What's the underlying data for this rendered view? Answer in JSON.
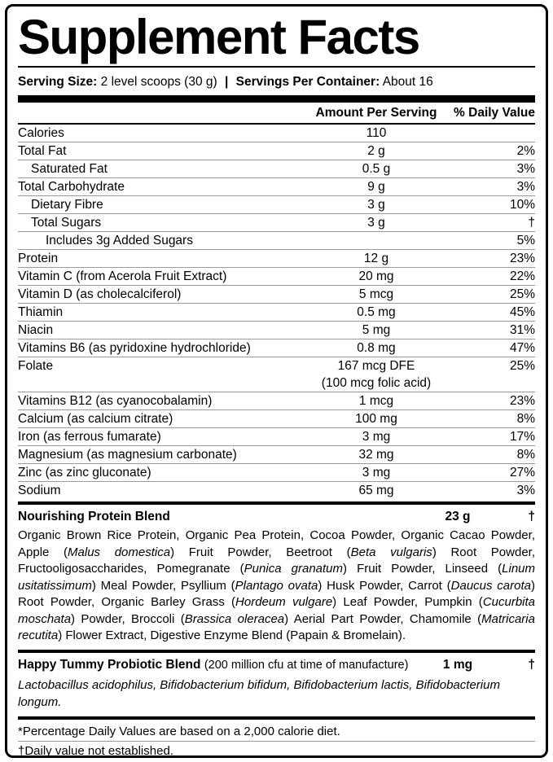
{
  "title": "Supplement Facts",
  "serving": {
    "size_label": "Serving Size:",
    "size_value": "2 level scoops (30 g)",
    "separator": "|",
    "container_label": "Servings Per Container:",
    "container_value": "About 16"
  },
  "columns": {
    "amount": "Amount Per Serving",
    "daily_value": "% Daily Value"
  },
  "nutrients": [
    {
      "name": "Calories",
      "amount": "110",
      "dv": "",
      "indent": 0
    },
    {
      "name": "Total Fat",
      "amount": "2 g",
      "dv": "2%",
      "indent": 0
    },
    {
      "name": "Saturated Fat",
      "amount": "0.5 g",
      "dv": "3%",
      "indent": 1
    },
    {
      "name": "Total Carbohydrate",
      "amount": "9 g",
      "dv": "3%",
      "indent": 0
    },
    {
      "name": "Dietary Fibre",
      "amount": "3 g",
      "dv": "10%",
      "indent": 1
    },
    {
      "name": "Total Sugars",
      "amount": "3 g",
      "dv": "†",
      "indent": 1
    },
    {
      "name": "Includes 3g Added Sugars",
      "amount": "",
      "dv": "5%",
      "indent": 2
    },
    {
      "name": "Protein",
      "amount": "12 g",
      "dv": "23%",
      "indent": 0
    },
    {
      "name": "Vitamin C (from Acerola Fruit Extract)",
      "amount": "20 mg",
      "dv": "22%",
      "indent": 0
    },
    {
      "name": "Vitamin D (as cholecalciferol)",
      "amount": "5 mcg",
      "dv": "25%",
      "indent": 0
    },
    {
      "name": "Thiamin",
      "amount": "0.5 mg",
      "dv": "45%",
      "indent": 0
    },
    {
      "name": "Niacin",
      "amount": "5 mg",
      "dv": "31%",
      "indent": 0
    },
    {
      "name": "Vitamins B6 (as pyridoxine hydrochloride)",
      "amount": "0.8 mg",
      "dv": "47%",
      "indent": 0
    },
    {
      "name": "Folate",
      "amount": "167 mcg DFE",
      "dv": "25%",
      "indent": 0
    },
    {
      "name": "",
      "amount": "(100 mcg folic acid)",
      "dv": "",
      "indent": 0,
      "sub": true
    },
    {
      "name": "Vitamins B12 (as cyanocobalamin)",
      "amount": "1 mcg",
      "dv": "23%",
      "indent": 0
    },
    {
      "name": "Calcium (as calcium citrate)",
      "amount": "100 mg",
      "dv": "8%",
      "indent": 0
    },
    {
      "name": "Iron (as ferrous fumarate)",
      "amount": "3 mg",
      "dv": "17%",
      "indent": 0
    },
    {
      "name": "Magnesium (as magnesium carbonate)",
      "amount": "32 mg",
      "dv": "8%",
      "indent": 0
    },
    {
      "name": "Zinc (as zinc gluconate)",
      "amount": "3 mg",
      "dv": "27%",
      "indent": 0
    },
    {
      "name": "Sodium",
      "amount": "65 mg",
      "dv": "3%",
      "indent": 0
    }
  ],
  "protein_blend": {
    "name": "Nourishing Protein Blend",
    "amount": "23 g",
    "dv": "†",
    "ingredients": [
      {
        "t": "Organic Brown Rice Protein, Organic Pea Protein, Cocoa Powder, Organic Cacao Powder, Apple (",
        "i": false
      },
      {
        "t": "Malus domestica",
        "i": true
      },
      {
        "t": ") Fruit Powder, Beetroot (",
        "i": false
      },
      {
        "t": "Beta vulgaris",
        "i": true
      },
      {
        "t": ") Root Powder, Fructooligosaccharides, Pomegranate (",
        "i": false
      },
      {
        "t": "Punica granatum",
        "i": true
      },
      {
        "t": ") Fruit Powder, Linseed (",
        "i": false
      },
      {
        "t": "Linum usitatissimum",
        "i": true
      },
      {
        "t": ") Meal Powder, Psyllium (",
        "i": false
      },
      {
        "t": "Plantago ovata",
        "i": true
      },
      {
        "t": ") Husk Powder, Carrot (",
        "i": false
      },
      {
        "t": "Daucus carota",
        "i": true
      },
      {
        "t": ") Root Powder, Organic Barley Grass (",
        "i": false
      },
      {
        "t": "Hordeum vulgare",
        "i": true
      },
      {
        "t": ") Leaf Powder, Pumpkin (",
        "i": false
      },
      {
        "t": "Cucurbita moschata",
        "i": true
      },
      {
        "t": ") Powder, Broccoli (",
        "i": false
      },
      {
        "t": "Brassica oleracea",
        "i": true
      },
      {
        "t": ") Aerial Part Powder, Chamomile (",
        "i": false
      },
      {
        "t": "Matricaria recutita",
        "i": true
      },
      {
        "t": ") Flower Extract, Digestive Enzyme Blend (Papain & Bromelain).",
        "i": false
      }
    ]
  },
  "probiotic_blend": {
    "name": "Happy Tummy Probiotic Blend",
    "note": "(200 million cfu at time of manufacture)",
    "amount": "1 mg",
    "dv": "†",
    "species": "Lactobacillus acidophilus, Bifidobacterium bifidum, Bifidobacterium lactis, Bifidobacterium longum."
  },
  "footnotes": [
    "*Percentage Daily Values are based on a 2,000 calorie diet.",
    "†Daily value not established."
  ],
  "colors": {
    "border": "#000000",
    "text": "#000000",
    "hairline": "#9c9c9c",
    "background": "#ffffff"
  }
}
